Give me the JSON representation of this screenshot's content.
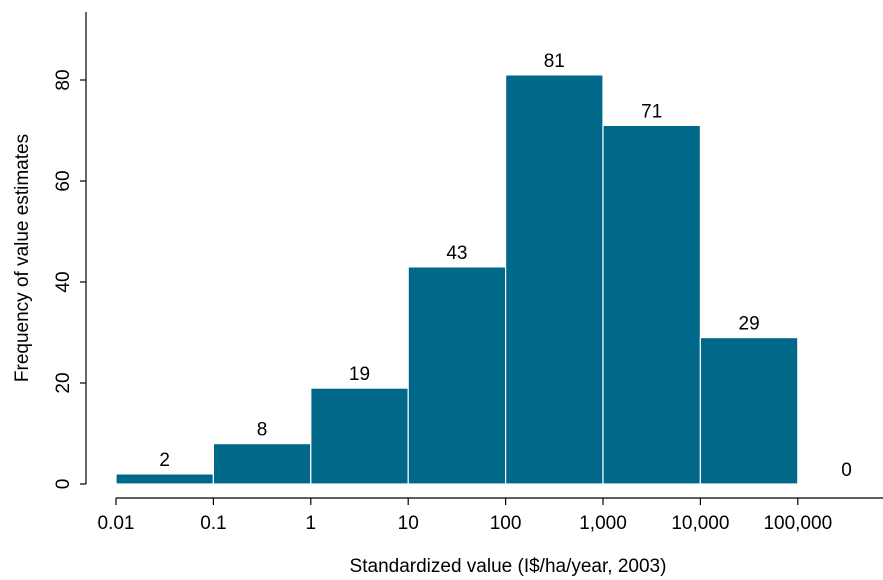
{
  "chart_data": {
    "type": "bar",
    "bins": [
      {
        "from": "0.01",
        "to": "0.1",
        "value": 2
      },
      {
        "from": "0.1",
        "to": "1",
        "value": 8
      },
      {
        "from": "1",
        "to": "10",
        "value": 19
      },
      {
        "from": "10",
        "to": "100",
        "value": 43
      },
      {
        "from": "100",
        "to": "1,000",
        "value": 81
      },
      {
        "from": "1,000",
        "to": "10,000",
        "value": 71
      },
      {
        "from": "10,000",
        "to": "100,000",
        "value": 29
      },
      {
        "from": "100,000",
        "to": "",
        "value": 0
      }
    ],
    "values": [
      2,
      8,
      19,
      43,
      81,
      71,
      29,
      0
    ],
    "x_ticks": [
      "0.01",
      "0.1",
      "1",
      "10",
      "100",
      "1,000",
      "10,000",
      "100,000"
    ],
    "y_ticks": [
      0,
      20,
      40,
      60,
      80
    ],
    "xlabel": "Standardized value (I$/ha/year, 2003)",
    "ylabel": "Frequency of value estimates",
    "ylim": [
      0,
      92
    ],
    "x_scale": "log",
    "bar_color": "#006889",
    "grid": false,
    "legend": "none"
  }
}
